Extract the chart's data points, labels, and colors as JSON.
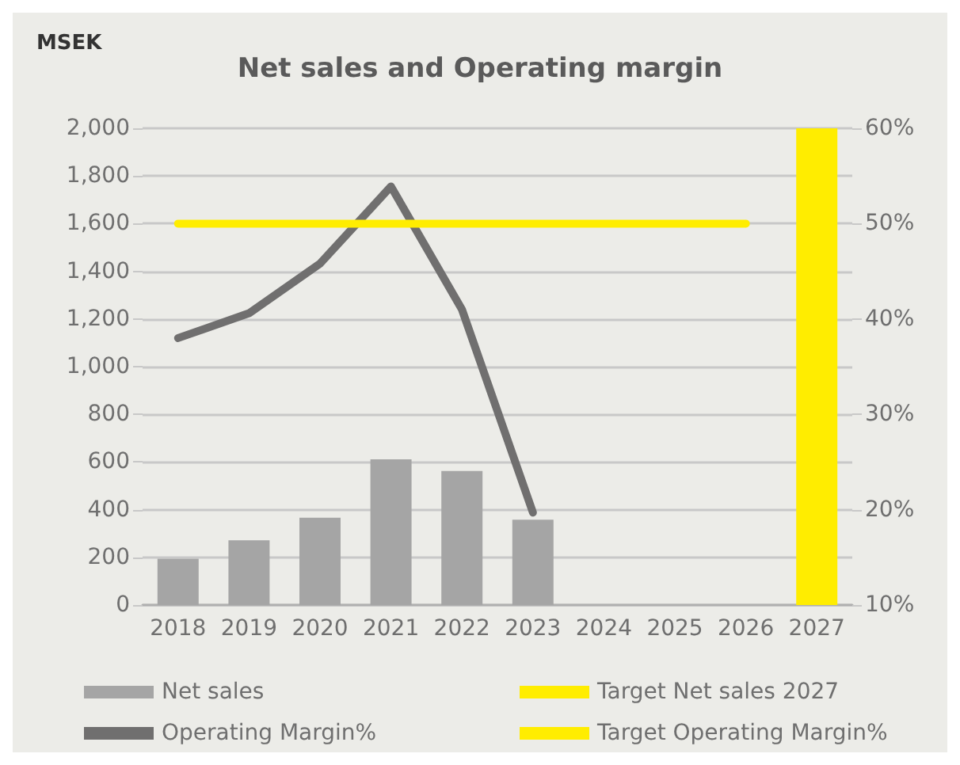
{
  "chart_data": {
    "type": "bar",
    "title": "Net sales and Operating margin",
    "ylabel": "MSEK",
    "categories": [
      "2018",
      "2019",
      "2020",
      "2021",
      "2022",
      "2023",
      "2024",
      "2025",
      "2026",
      "2027"
    ],
    "series": [
      {
        "name": "Net sales",
        "color": "#a5a5a5",
        "values": [
          194,
          272,
          366,
          611,
          562,
          358,
          null,
          null,
          null,
          null
        ]
      },
      {
        "name": "Target Net sales 2027",
        "color": "#ffed00",
        "values": [
          null,
          null,
          null,
          null,
          null,
          null,
          null,
          null,
          null,
          2000
        ]
      },
      {
        "name": "Operating Margin%",
        "type": "line",
        "axis": "y2",
        "color": "#706f6f",
        "values": [
          38,
          40.6,
          45.8,
          53.9,
          41,
          19.7,
          null,
          null,
          null,
          null
        ]
      },
      {
        "name": "Target Operating Margin%",
        "type": "line",
        "axis": "y2",
        "color": "#ffed00",
        "values": [
          50,
          50,
          50,
          50,
          50,
          50,
          50,
          50,
          50,
          null
        ]
      }
    ],
    "stacked": true,
    "ylim": [
      0,
      2000
    ],
    "yticks": [
      0,
      200,
      400,
      600,
      800,
      {
        "value": 1000,
        "label": "1,000"
      },
      {
        "value": 1200,
        "label": "1,200"
      },
      {
        "value": 1400,
        "label": "1,400"
      },
      {
        "value": 1600,
        "label": "1,600"
      },
      {
        "value": 1800,
        "label": "1,800"
      },
      {
        "value": 2000,
        "label": "2,000"
      }
    ],
    "y2lim": [
      10,
      60
    ],
    "y2ticks": [
      {
        "value": 10,
        "label": "10%"
      },
      {
        "value": 20,
        "label": "20%"
      },
      {
        "value": 30,
        "label": "30%"
      },
      {
        "value": 40,
        "label": "40%"
      },
      {
        "value": 50,
        "label": "50%"
      },
      {
        "value": 60,
        "label": "60%"
      }
    ],
    "grid": "y",
    "legend": "bottom",
    "marker": "none",
    "line_style": "solid"
  }
}
